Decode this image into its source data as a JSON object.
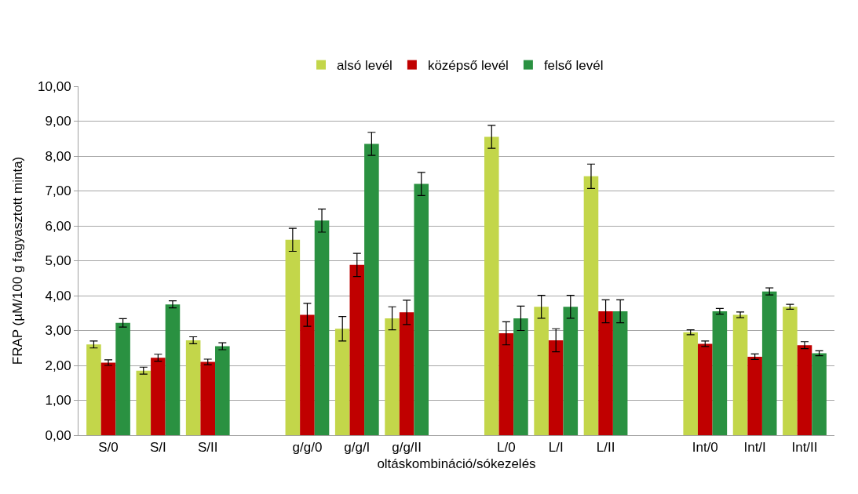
{
  "chart_data": {
    "type": "bar",
    "xlabel": "oltáskombináció/sókezelés",
    "ylabel": "FRAP (µM/100 g fagyasztott minta)",
    "categories": [
      "S/0",
      "S/I",
      "S/II",
      null,
      "g/g/0",
      "g/g/I",
      "g/g/II",
      null,
      "L/0",
      "L/I",
      "L/II",
      null,
      "Int/0",
      "Int/I",
      "Int/II"
    ],
    "series": [
      {
        "name": "alsó levél",
        "color": "#c3d64a",
        "values": [
          2.6,
          1.85,
          2.72,
          null,
          5.6,
          3.05,
          3.35,
          null,
          8.55,
          3.68,
          7.42,
          null,
          2.95,
          3.45,
          3.68
        ],
        "errors": [
          0.1,
          0.1,
          0.1,
          null,
          0.33,
          0.35,
          0.33,
          null,
          0.33,
          0.33,
          0.35,
          null,
          0.07,
          0.08,
          0.07
        ]
      },
      {
        "name": "középső levél",
        "color": "#c00000",
        "values": [
          2.08,
          2.22,
          2.1,
          null,
          3.45,
          4.88,
          3.52,
          null,
          2.92,
          2.72,
          3.55,
          null,
          2.62,
          2.25,
          2.58
        ],
        "errors": [
          0.08,
          0.1,
          0.08,
          null,
          0.33,
          0.33,
          0.35,
          null,
          0.33,
          0.33,
          0.33,
          null,
          0.08,
          0.08,
          0.1
        ]
      },
      {
        "name": "felső levél",
        "color": "#2a9141",
        "values": [
          3.22,
          3.75,
          2.55,
          null,
          6.15,
          8.35,
          7.2,
          null,
          3.35,
          3.68,
          3.55,
          null,
          3.55,
          4.12,
          2.35
        ],
        "errors": [
          0.12,
          0.1,
          0.1,
          null,
          0.33,
          0.33,
          0.33,
          null,
          0.35,
          0.33,
          0.33,
          null,
          0.08,
          0.1,
          0.07
        ]
      }
    ],
    "ylim": [
      0,
      10
    ],
    "yticks": [
      {
        "value": 0,
        "label": "0,00"
      },
      {
        "value": 1,
        "label": "1,00"
      },
      {
        "value": 2,
        "label": "2,00"
      },
      {
        "value": 3,
        "label": "3,00"
      },
      {
        "value": 4,
        "label": "4,00"
      },
      {
        "value": 5,
        "label": "5,00"
      },
      {
        "value": 6,
        "label": "6,00"
      },
      {
        "value": 7,
        "label": "7,00"
      },
      {
        "value": 8,
        "label": "8,00"
      },
      {
        "value": 9,
        "label": "9,00"
      },
      {
        "value": 10,
        "label": "10,00"
      }
    ],
    "grid": "y",
    "legend": "top"
  }
}
